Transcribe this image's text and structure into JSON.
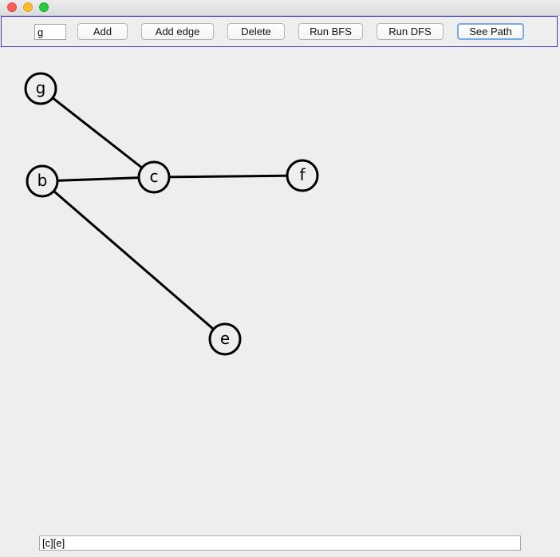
{
  "window": {
    "controls": [
      "close",
      "minimize",
      "zoom"
    ]
  },
  "toolbar": {
    "node_input_value": "g",
    "add_label": "Add",
    "add_edge_label": "Add edge",
    "delete_label": "Delete",
    "run_bfs_label": "Run BFS",
    "run_dfs_label": "Run DFS",
    "see_path_label": "See Path"
  },
  "graph": {
    "nodes": [
      {
        "id": "g",
        "label": "g"
      },
      {
        "id": "b",
        "label": "b"
      },
      {
        "id": "c",
        "label": "c"
      },
      {
        "id": "f",
        "label": "f"
      },
      {
        "id": "e",
        "label": "e"
      }
    ],
    "edges": [
      {
        "from": "g",
        "to": "c"
      },
      {
        "from": "b",
        "to": "c"
      },
      {
        "from": "c",
        "to": "f"
      },
      {
        "from": "b",
        "to": "e"
      }
    ]
  },
  "output": {
    "value": "[c][e]"
  }
}
